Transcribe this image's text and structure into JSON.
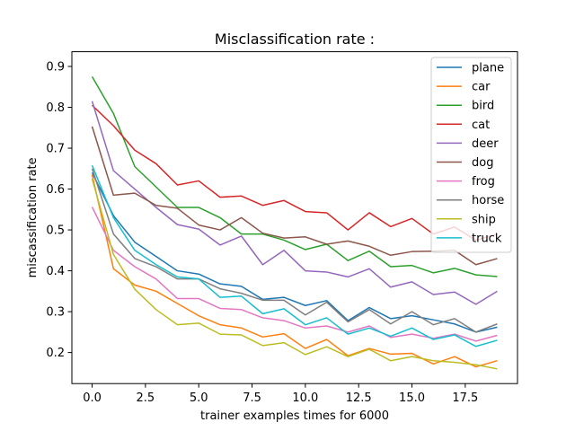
{
  "chart_data": {
    "type": "line",
    "title": "Misclassification rate :",
    "xlabel": "trainer examples times for 6000",
    "ylabel": "miscassification rate",
    "xlim": [
      -0.95,
      19.95
    ],
    "ylim": [
      0.124,
      0.936
    ],
    "xticks": [
      0.0,
      2.5,
      5.0,
      7.5,
      10.0,
      12.5,
      15.0,
      17.5
    ],
    "xtick_labels": [
      "0.0",
      "2.5",
      "5.0",
      "7.5",
      "10.0",
      "12.5",
      "15.0",
      "17.5"
    ],
    "yticks": [
      0.2,
      0.3,
      0.4,
      0.5,
      0.6,
      0.7,
      0.8,
      0.9
    ],
    "ytick_labels": [
      "0.2",
      "0.3",
      "0.4",
      "0.5",
      "0.6",
      "0.7",
      "0.8",
      "0.9"
    ],
    "grid": false,
    "legend_position": "top-right",
    "x": [
      0,
      1,
      2,
      3,
      4,
      5,
      6,
      7,
      8,
      9,
      10,
      11,
      12,
      13,
      14,
      15,
      16,
      17,
      18,
      19
    ],
    "series": [
      {
        "name": "plane",
        "color": "#1f77b4",
        "values": [
          0.64,
          0.535,
          0.47,
          0.435,
          0.4,
          0.392,
          0.368,
          0.362,
          0.33,
          0.335,
          0.315,
          0.327,
          0.278,
          0.31,
          0.283,
          0.29,
          0.28,
          0.27,
          0.25,
          0.262
        ]
      },
      {
        "name": "car",
        "color": "#ff7f0e",
        "values": [
          0.635,
          0.405,
          0.365,
          0.35,
          0.32,
          0.29,
          0.268,
          0.26,
          0.238,
          0.246,
          0.21,
          0.232,
          0.192,
          0.21,
          0.196,
          0.198,
          0.172,
          0.19,
          0.165,
          0.18
        ]
      },
      {
        "name": "bird",
        "color": "#2ca02c",
        "values": [
          0.875,
          0.785,
          0.655,
          0.605,
          0.555,
          0.555,
          0.53,
          0.49,
          0.49,
          0.475,
          0.452,
          0.465,
          0.425,
          0.448,
          0.41,
          0.413,
          0.395,
          0.406,
          0.39,
          0.386
        ]
      },
      {
        "name": "cat",
        "color": "#d62728",
        "values": [
          0.805,
          0.755,
          0.695,
          0.662,
          0.61,
          0.62,
          0.58,
          0.583,
          0.56,
          0.572,
          0.545,
          0.542,
          0.5,
          0.542,
          0.508,
          0.528,
          0.49,
          0.507,
          0.475,
          0.49
        ]
      },
      {
        "name": "deer",
        "color": "#9467bd",
        "values": [
          0.815,
          0.645,
          0.6,
          0.555,
          0.513,
          0.502,
          0.463,
          0.485,
          0.415,
          0.45,
          0.4,
          0.397,
          0.385,
          0.405,
          0.36,
          0.373,
          0.342,
          0.348,
          0.318,
          0.35
        ]
      },
      {
        "name": "dog",
        "color": "#8c564b",
        "values": [
          0.753,
          0.585,
          0.59,
          0.56,
          0.553,
          0.512,
          0.5,
          0.53,
          0.492,
          0.48,
          0.483,
          0.465,
          0.473,
          0.46,
          0.438,
          0.447,
          0.448,
          0.45,
          0.415,
          0.43
        ]
      },
      {
        "name": "frog",
        "color": "#e377c2",
        "values": [
          0.556,
          0.45,
          0.41,
          0.38,
          0.332,
          0.332,
          0.308,
          0.305,
          0.285,
          0.278,
          0.26,
          0.265,
          0.25,
          0.265,
          0.237,
          0.245,
          0.235,
          0.245,
          0.228,
          0.242
        ]
      },
      {
        "name": "horse",
        "color": "#7f7f7f",
        "values": [
          0.65,
          0.49,
          0.43,
          0.41,
          0.38,
          0.38,
          0.356,
          0.345,
          0.328,
          0.328,
          0.292,
          0.323,
          0.275,
          0.305,
          0.27,
          0.3,
          0.268,
          0.283,
          0.25,
          0.27
        ]
      },
      {
        "name": "ship",
        "color": "#bcbd22",
        "values": [
          0.625,
          0.44,
          0.355,
          0.305,
          0.268,
          0.272,
          0.245,
          0.243,
          0.217,
          0.224,
          0.195,
          0.214,
          0.19,
          0.208,
          0.18,
          0.19,
          0.18,
          0.176,
          0.17,
          0.16
        ]
      },
      {
        "name": "truck",
        "color": "#17becf",
        "values": [
          0.658,
          0.53,
          0.45,
          0.415,
          0.385,
          0.38,
          0.335,
          0.338,
          0.295,
          0.307,
          0.268,
          0.285,
          0.245,
          0.26,
          0.24,
          0.26,
          0.232,
          0.243,
          0.215,
          0.23
        ]
      }
    ]
  }
}
